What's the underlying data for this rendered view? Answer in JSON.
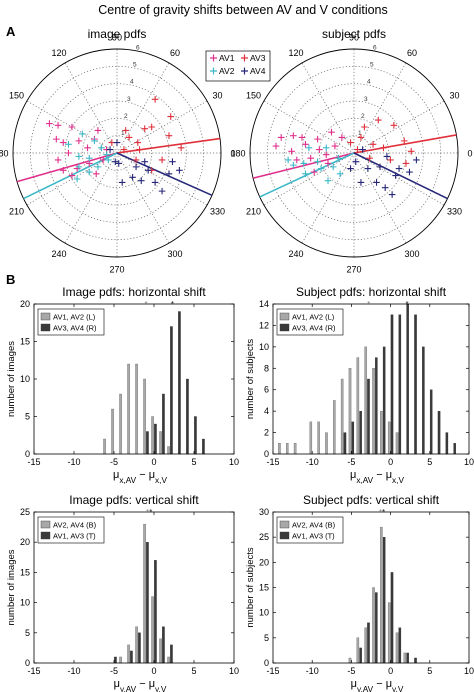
{
  "figure_title": "Centre of gravity shifts between AV and V conditions",
  "panel_labels": [
    "A",
    "B"
  ],
  "colors": {
    "AV1": "#e0308c",
    "AV2": "#3cb8c8",
    "AV3": "#e0303c",
    "AV4": "#28287a",
    "bar_light": "#a8a8a8",
    "bar_dark": "#3a3a3a"
  },
  "chart_data": [
    {
      "type": "scatter",
      "coordinate_system": "polar",
      "title": "image pdfs",
      "angle_labels": [
        "90",
        "60",
        "30",
        "0",
        "330",
        "300",
        "270",
        "240",
        "210",
        "180",
        "150",
        "120"
      ],
      "radial_labels": [
        "6",
        "5",
        "4",
        "3",
        "2",
        "1"
      ],
      "rmax": 6,
      "grid": true,
      "legend": {
        "position": "top-right",
        "entries": [
          "AV1",
          "AV3",
          "AV2",
          "AV4"
        ]
      },
      "series": [
        {
          "name": "AV1",
          "marker": "plus",
          "points": [
            [
              -3.9,
              1.7
            ],
            [
              -3.4,
              1.6
            ],
            [
              -2.6,
              1.5
            ],
            [
              -3.5,
              0.8
            ],
            [
              -3.1,
              0.6
            ],
            [
              -2.2,
              0.7
            ],
            [
              -2.8,
              0.0
            ],
            [
              -1.7,
              0.3
            ],
            [
              -1.3,
              0.8
            ],
            [
              -1.6,
              -0.6
            ],
            [
              -2.3,
              -0.9
            ],
            [
              -2.6,
              -1.3
            ],
            [
              -1.2,
              -1.2
            ],
            [
              -0.6,
              0.2
            ],
            [
              -1.1,
              1.3
            ],
            [
              -3.4,
              -0.4
            ],
            [
              -3.1,
              -1.0
            ],
            [
              -0.8,
              -0.4
            ]
          ],
          "fit_angle_deg": 196
        },
        {
          "name": "AV2",
          "marker": "plus",
          "points": [
            [
              -2.0,
              1.1
            ],
            [
              -1.3,
              0.7
            ],
            [
              -2.8,
              0.5
            ],
            [
              -2.2,
              -0.2
            ],
            [
              -0.9,
              0.3
            ],
            [
              -1.6,
              -0.3
            ],
            [
              -2.2,
              -0.8
            ],
            [
              -0.6,
              -0.1
            ],
            [
              -1.6,
              -1.1
            ],
            [
              -1.1,
              -0.8
            ],
            [
              -2.3,
              -1.5
            ],
            [
              -0.5,
              -0.4
            ]
          ],
          "fit_angle_deg": 206
        },
        {
          "name": "AV3",
          "marker": "plus",
          "points": [
            [
              2.2,
              3.1
            ],
            [
              3.1,
              2.1
            ],
            [
              2.0,
              1.5
            ],
            [
              3.0,
              1.0
            ],
            [
              3.7,
              0.3
            ],
            [
              0.7,
              0.9
            ],
            [
              0.5,
              1.3
            ],
            [
              1.2,
              0.6
            ],
            [
              1.3,
              0.2
            ],
            [
              2.6,
              -0.4
            ],
            [
              2.0,
              -1.0
            ],
            [
              0.4,
              0.2
            ],
            [
              1.1,
              -0.4
            ],
            [
              -0.3,
              0.6
            ],
            [
              1.6,
              1.4
            ]
          ],
          "fit_angle_deg": 8
        },
        {
          "name": "AV4",
          "marker": "plus",
          "points": [
            [
              1.8,
              -1.0
            ],
            [
              3.0,
              -1.2
            ],
            [
              3.6,
              -1.0
            ],
            [
              3.2,
              -0.5
            ],
            [
              2.6,
              -2.2
            ],
            [
              1.1,
              -0.8
            ],
            [
              0.1,
              -0.6
            ],
            [
              0.9,
              -1.4
            ],
            [
              2.2,
              -1.7
            ],
            [
              -0.1,
              -0.5
            ],
            [
              1.6,
              -0.5
            ],
            [
              0.0,
              0.6
            ],
            [
              0.3,
              -1.7
            ],
            [
              1.4,
              -1.6
            ],
            [
              -0.4,
              0.2
            ]
          ],
          "fit_angle_deg": 336
        }
      ]
    },
    {
      "type": "scatter",
      "coordinate_system": "polar",
      "title": "subject pdfs",
      "angle_labels": [
        "90",
        "60",
        "30",
        "0",
        "330",
        "300",
        "270",
        "240",
        "210",
        "180",
        "150",
        "120"
      ],
      "radial_labels": [
        "6",
        "5",
        "4",
        "3",
        "2",
        "1"
      ],
      "rmax": 6,
      "grid": true,
      "series": [
        {
          "name": "AV1",
          "marker": "plus",
          "points": [
            [
              -4.2,
              0.9
            ],
            [
              -3.5,
              1.0
            ],
            [
              -3.6,
              0.1
            ],
            [
              -3.3,
              -0.4
            ],
            [
              -2.8,
              0.5
            ],
            [
              -2.5,
              -0.3
            ],
            [
              -2.1,
              0.8
            ],
            [
              -2.0,
              0.2
            ],
            [
              -1.6,
              -0.1
            ],
            [
              -1.5,
              -0.6
            ],
            [
              -1.1,
              0.4
            ],
            [
              -2.3,
              -1.1
            ],
            [
              -1.3,
              1.2
            ],
            [
              -0.7,
              0.9
            ],
            [
              -4.5,
              0.4
            ],
            [
              -3.0,
              0.9
            ]
          ],
          "fit_angle_deg": 194
        },
        {
          "name": "AV2",
          "marker": "plus",
          "points": [
            [
              -3.8,
              -0.4
            ],
            [
              -3.5,
              -0.7
            ],
            [
              -2.9,
              -0.6
            ],
            [
              -2.6,
              0.3
            ],
            [
              -2.1,
              -0.5
            ],
            [
              -1.9,
              -0.9
            ],
            [
              -1.6,
              0.3
            ],
            [
              -1.2,
              -0.8
            ],
            [
              -1.5,
              -1.6
            ],
            [
              -0.8,
              -1.2
            ],
            [
              -2.8,
              -1.2
            ],
            [
              -0.9,
              -0.3
            ]
          ],
          "fit_angle_deg": 205
        },
        {
          "name": "AV3",
          "marker": "plus",
          "points": [
            [
              1.4,
              1.9
            ],
            [
              2.3,
              1.6
            ],
            [
              0.6,
              1.5
            ],
            [
              2.9,
              0.7
            ],
            [
              3.3,
              0.1
            ],
            [
              0.4,
              0.9
            ],
            [
              1.1,
              0.5
            ],
            [
              1.7,
              0.3
            ],
            [
              2.1,
              -0.4
            ],
            [
              0.9,
              -0.3
            ],
            [
              0.2,
              0.2
            ],
            [
              3.0,
              -0.6
            ],
            [
              -0.2,
              0.6
            ]
          ],
          "fit_angle_deg": 10
        },
        {
          "name": "AV4",
          "marker": "plus",
          "points": [
            [
              1.5,
              -0.8
            ],
            [
              2.4,
              -1.3
            ],
            [
              3.2,
              -1.1
            ],
            [
              3.6,
              -0.4
            ],
            [
              1.8,
              -2.0
            ],
            [
              0.8,
              -0.9
            ],
            [
              0.4,
              -1.7
            ],
            [
              1.3,
              -1.7
            ],
            [
              2.6,
              -0.9
            ],
            [
              0.1,
              -0.5
            ],
            [
              1.9,
              -0.2
            ],
            [
              2.2,
              -2.4
            ],
            [
              0.5,
              0.2
            ],
            [
              -0.2,
              -0.9
            ]
          ],
          "fit_angle_deg": 334
        }
      ]
    },
    {
      "type": "bar",
      "title": "Image pdfs: horizontal shift",
      "xlabel": "μx,AV − μx,V",
      "ylabel": "number of images",
      "xlim": [
        -15,
        10
      ],
      "ylim": [
        0,
        20
      ],
      "xticks": [
        -15,
        -10,
        -5,
        0,
        5,
        10
      ],
      "yticks": [
        0,
        5,
        10,
        15,
        20
      ],
      "legend": {
        "position": "top-left",
        "entries": [
          "AV1, AV2 (L)",
          "AV3, AV4 (R)"
        ]
      },
      "markers_top": [
        -1,
        2.3
      ],
      "x": [
        -7,
        -6,
        -5,
        -4,
        -3,
        -2,
        -1,
        0,
        1,
        2,
        3,
        4,
        5,
        6,
        7
      ],
      "series": [
        {
          "name": "AV1, AV2 (L)",
          "values": [
            0,
            2,
            6,
            8,
            12,
            12,
            10,
            5,
            3,
            1,
            0,
            0,
            0,
            0,
            0
          ]
        },
        {
          "name": "AV3, AV4 (R)",
          "values": [
            0,
            0,
            0,
            0,
            0,
            0,
            3,
            4,
            8,
            17,
            19,
            10,
            5,
            2,
            0
          ]
        }
      ]
    },
    {
      "type": "bar",
      "title": "Subject pdfs: horizontal shift",
      "xlabel": "μx,AV − μx,V",
      "ylabel": "number of subjects",
      "xlim": [
        -15,
        10
      ],
      "ylim": [
        0,
        14
      ],
      "xticks": [
        -15,
        -10,
        -5,
        0,
        5,
        10
      ],
      "yticks": [
        0,
        2,
        4,
        6,
        8,
        10,
        12,
        14
      ],
      "legend": {
        "position": "top-left",
        "entries": [
          "AV1, AV2 (L)",
          "AV3, AV4 (R)"
        ]
      },
      "markers_top": [
        -2.8,
        2.1
      ],
      "x": [
        -14,
        -13,
        -12,
        -11,
        -10,
        -9,
        -8,
        -7,
        -6,
        -5,
        -4,
        -3,
        -2,
        -1,
        0,
        1,
        2,
        3,
        4,
        5,
        6,
        7,
        8
      ],
      "series": [
        {
          "name": "AV1, AV2 (L)",
          "values": [
            1,
            1,
            1,
            0,
            3,
            3,
            2,
            5,
            7,
            8,
            9,
            10,
            8,
            4,
            3,
            2,
            0,
            0,
            0,
            0,
            0,
            0,
            0
          ]
        },
        {
          "name": "AV3, AV4 (R)",
          "values": [
            0,
            0,
            0,
            0,
            0,
            0,
            0,
            0,
            2,
            3,
            4,
            7,
            9,
            10,
            13,
            13,
            14,
            13,
            10,
            6,
            4,
            2,
            1
          ]
        }
      ]
    },
    {
      "type": "bar",
      "title": "Image pdfs: vertical shift",
      "xlabel": "μy,AV − μy,V",
      "ylabel": "number of images",
      "xlim": [
        -15,
        10
      ],
      "ylim": [
        0,
        25
      ],
      "xticks": [
        -15,
        -10,
        -5,
        0,
        5,
        10
      ],
      "yticks": [
        0,
        5,
        10,
        15,
        20,
        25
      ],
      "legend": {
        "position": "top-left",
        "entries": [
          "AV2, AV4 (B)",
          "AV1, AV3 (T)"
        ]
      },
      "markers_top": [
        -0.8,
        -0.4
      ],
      "x": [
        -5,
        -4,
        -3,
        -2,
        -1,
        0,
        1,
        2,
        3
      ],
      "series": [
        {
          "name": "AV2, AV4 (B)",
          "values": [
            0,
            1,
            3,
            6,
            23,
            11,
            4,
            1,
            0
          ]
        },
        {
          "name": "AV1, AV3 (T)",
          "values": [
            1,
            0,
            2,
            5,
            20,
            17,
            6,
            3,
            0
          ]
        }
      ]
    },
    {
      "type": "bar",
      "title": "Subject pdfs: vertical shift",
      "xlabel": "μy,AV − μy,V",
      "ylabel": "number of subjects",
      "xlim": [
        -15,
        10
      ],
      "ylim": [
        0,
        30
      ],
      "xticks": [
        -15,
        -10,
        -5,
        0,
        5,
        10
      ],
      "yticks": [
        0,
        5,
        10,
        15,
        20,
        25,
        30
      ],
      "legend": {
        "position": "top-left",
        "entries": [
          "AV2, AV4 (B)",
          "AV1, AV3 (T)"
        ]
      },
      "markers_top": [
        -1.3,
        -0.9
      ],
      "x": [
        -5,
        -4,
        -3,
        -2,
        -1,
        0,
        1,
        2,
        3
      ],
      "series": [
        {
          "name": "AV2, AV4 (B)",
          "values": [
            1,
            5,
            7,
            15,
            27,
            12,
            6,
            2,
            0
          ]
        },
        {
          "name": "AV1, AV3 (T)",
          "values": [
            0,
            3,
            8,
            14,
            25,
            18,
            7,
            2,
            1
          ]
        }
      ]
    }
  ]
}
